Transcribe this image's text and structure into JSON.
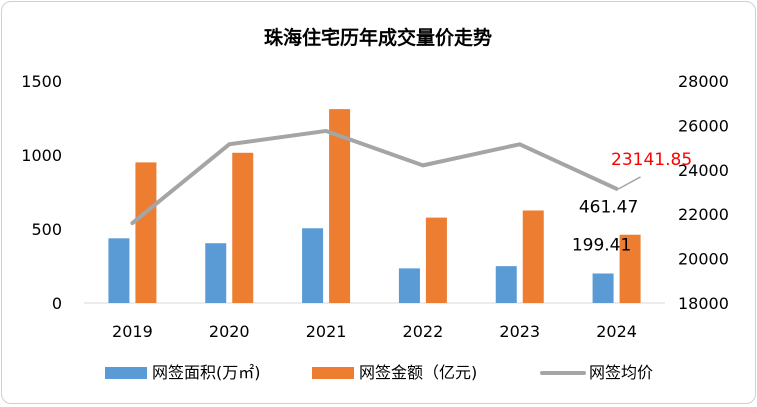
{
  "chart_data": {
    "type": "bar",
    "title": "珠海住宅历年成交量价走势",
    "categories": [
      "2019",
      "2020",
      "2021",
      "2022",
      "2023",
      "2024"
    ],
    "y_left": {
      "ticks": [
        "0",
        "500",
        "1000",
        "1500"
      ],
      "range": [
        0,
        1500
      ]
    },
    "y_right": {
      "ticks": [
        "18000",
        "20000",
        "22000",
        "24000",
        "26000",
        "28000"
      ],
      "range": [
        18000,
        28000
      ]
    },
    "series": [
      {
        "name": "网签面积(万㎡)",
        "type": "bar",
        "axis": "left",
        "color": "#5b9bd5",
        "values": [
          437,
          404,
          505,
          234,
          249,
          199.41
        ]
      },
      {
        "name": "网签金额（亿元)",
        "type": "bar",
        "axis": "left",
        "color": "#ed7d31",
        "values": [
          950,
          1015,
          1310,
          577,
          625,
          461.47
        ]
      },
      {
        "name": "网签均价",
        "type": "line",
        "axis": "right",
        "color": "#a5a5a5",
        "values": [
          21600,
          25150,
          25750,
          24200,
          25150,
          23141.85
        ]
      }
    ],
    "data_labels": [
      {
        "series": 0,
        "index": 5,
        "text": "199.41",
        "color": "#000000"
      },
      {
        "series": 1,
        "index": 5,
        "text": "461.47",
        "color": "#000000"
      },
      {
        "series": 2,
        "index": 5,
        "text": "23141.85",
        "color": "#ff0000"
      }
    ],
    "legend": "bottom",
    "grid": false
  }
}
